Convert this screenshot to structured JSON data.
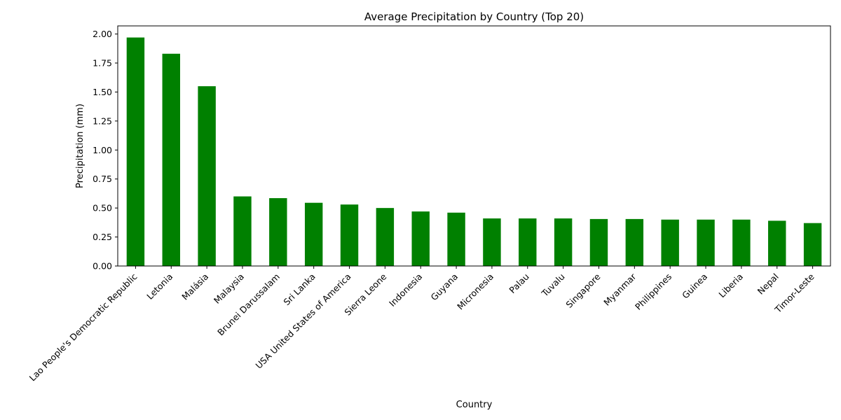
{
  "chart_data": {
    "type": "bar",
    "title": "Average Precipitation by Country (Top 20)",
    "xlabel": "Country",
    "ylabel": "Precipitation (mm)",
    "ylim": [
      0,
      2.07
    ],
    "yticks": [
      "0.00",
      "0.25",
      "0.50",
      "0.75",
      "1.00",
      "1.25",
      "1.50",
      "1.75",
      "2.00"
    ],
    "grid": false,
    "bar_color": "#008000",
    "categories": [
      "Lao People's Democratic Republic",
      "Letonia",
      "Malásia",
      "Malaysia",
      "Brunei Darussalam",
      "Sri Lanka",
      "USA United States of America",
      "Sierra Leone",
      "Indonesia",
      "Guyana",
      "Micronesia",
      "Palau",
      "Tuvalu",
      "Singapore",
      "Myanmar",
      "Philippines",
      "Guinea",
      "Liberia",
      "Nepal",
      "Timor-Leste"
    ],
    "values": [
      1.97,
      1.83,
      1.55,
      0.6,
      0.585,
      0.545,
      0.53,
      0.5,
      0.47,
      0.46,
      0.41,
      0.41,
      0.41,
      0.405,
      0.405,
      0.4,
      0.4,
      0.4,
      0.39,
      0.37
    ]
  }
}
